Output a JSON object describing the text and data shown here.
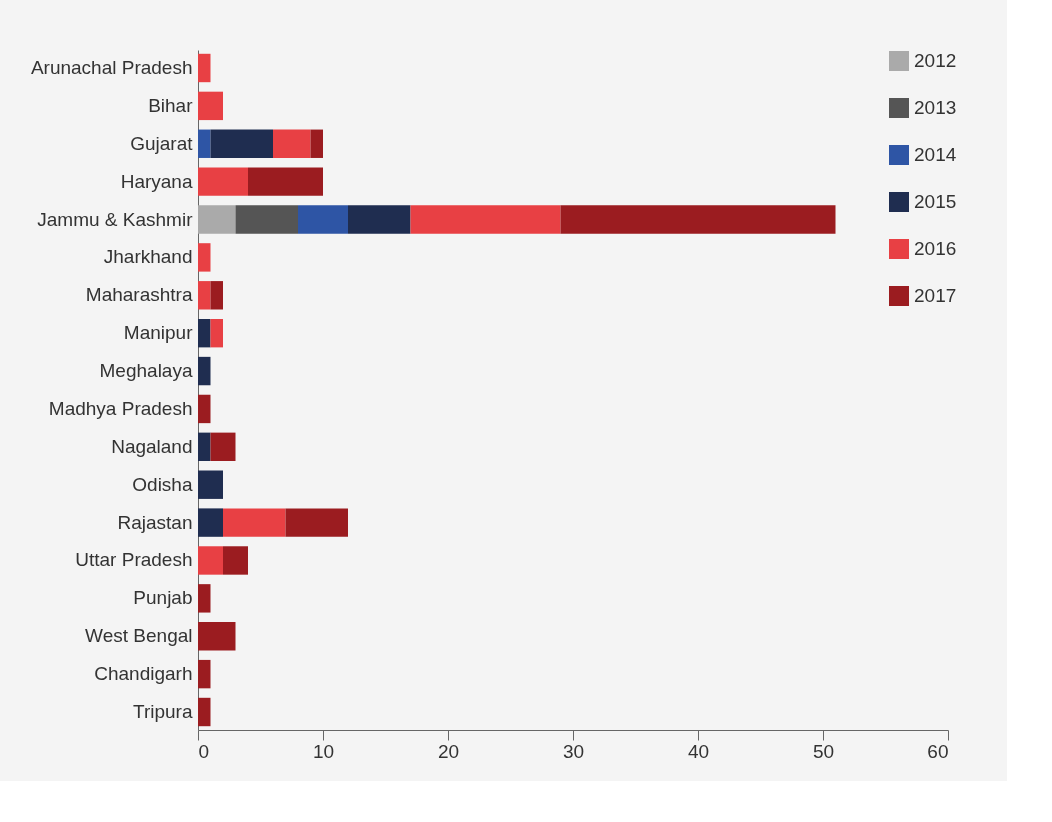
{
  "chart_data": {
    "type": "bar",
    "orientation": "horizontal",
    "stacked": true,
    "categories": [
      "Arunachal Pradesh",
      "Bihar",
      "Gujarat",
      "Haryana",
      "Jammu & Kashmir",
      "Jharkhand",
      "Maharashtra",
      "Manipur",
      "Meghalaya",
      "Madhya Pradesh",
      "Nagaland",
      "Odisha",
      "Rajastan",
      "Uttar Pradesh",
      "Punjab",
      "West Bengal",
      "Chandigarh",
      "Tripura"
    ],
    "series": [
      {
        "name": "2012",
        "color": "#aaaaaa",
        "values": [
          null,
          null,
          null,
          null,
          3,
          null,
          null,
          null,
          null,
          null,
          null,
          null,
          null,
          null,
          null,
          null,
          null,
          null
        ]
      },
      {
        "name": "2013",
        "color": "#555555",
        "values": [
          null,
          null,
          null,
          null,
          5,
          null,
          null,
          null,
          null,
          null,
          null,
          null,
          null,
          null,
          null,
          null,
          null,
          null
        ]
      },
      {
        "name": "2014",
        "color": "#2e55a5",
        "values": [
          null,
          null,
          1,
          null,
          4,
          null,
          null,
          null,
          null,
          null,
          null,
          null,
          null,
          null,
          null,
          null,
          null,
          null
        ]
      },
      {
        "name": "2015",
        "color": "#1f2d50",
        "values": [
          null,
          null,
          5,
          null,
          5,
          null,
          null,
          1,
          1,
          null,
          1,
          2,
          2,
          null,
          null,
          null,
          null,
          null
        ]
      },
      {
        "name": "2016",
        "color": "#e84044",
        "values": [
          1,
          2,
          3,
          4,
          12,
          1,
          1,
          1,
          null,
          null,
          null,
          null,
          5,
          2,
          null,
          null,
          null,
          null
        ]
      },
      {
        "name": "2017",
        "color": "#9b1c20",
        "values": [
          null,
          null,
          1,
          6,
          22,
          null,
          1,
          null,
          null,
          1,
          2,
          null,
          5,
          2,
          1,
          3,
          1,
          1
        ]
      }
    ],
    "xlim": [
      0,
      60
    ],
    "xticks": [
      0,
      10,
      20,
      30,
      40,
      50,
      60
    ],
    "grid": false,
    "legend": "right"
  }
}
